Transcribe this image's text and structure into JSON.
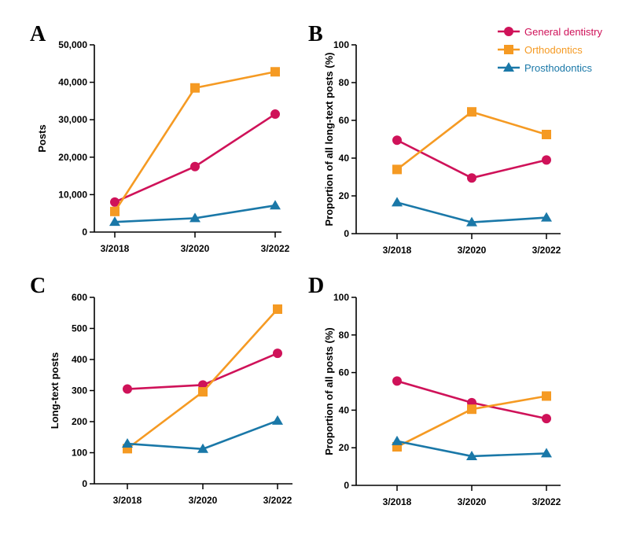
{
  "colors": {
    "general": "#cf1259",
    "ortho": "#f59a23",
    "prostho": "#1a78a8",
    "axis": "#000000"
  },
  "legend": [
    {
      "key": "general",
      "label": "General dentistry",
      "marker": "circle"
    },
    {
      "key": "ortho",
      "label": "Orthodontics",
      "marker": "square"
    },
    {
      "key": "prostho",
      "label": "Prosthodontics",
      "marker": "triangle"
    }
  ],
  "chart_data": [
    {
      "type": "line",
      "panel": "A",
      "categories": [
        "3/2018",
        "3/2020",
        "3/2022"
      ],
      "ylabel": "Posts",
      "xlabel": "",
      "ylim": [
        0,
        50000
      ],
      "yticks": [
        "0",
        "10,000",
        "20,000",
        "30,000",
        "40,000",
        "50,000"
      ],
      "series": [
        {
          "name": "General dentistry",
          "key": "general",
          "values": [
            8000,
            17500,
            31500
          ]
        },
        {
          "name": "Orthodontics",
          "key": "ortho",
          "values": [
            5500,
            38500,
            42800
          ]
        },
        {
          "name": "Prosthodontics",
          "key": "prostho",
          "values": [
            2700,
            3700,
            7100
          ]
        }
      ]
    },
    {
      "type": "line",
      "panel": "B",
      "categories": [
        "3/2018",
        "3/2020",
        "3/2022"
      ],
      "ylabel": "Proportion of all long-text posts (%)",
      "xlabel": "",
      "ylim": [
        0,
        100
      ],
      "yticks": [
        "0",
        "20",
        "40",
        "60",
        "80",
        "100"
      ],
      "series": [
        {
          "name": "General dentistry",
          "key": "general",
          "values": [
            49.5,
            29.5,
            39
          ]
        },
        {
          "name": "Orthodontics",
          "key": "ortho",
          "values": [
            34,
            64.5,
            52.5
          ]
        },
        {
          "name": "Prosthodontics",
          "key": "prostho",
          "values": [
            16.5,
            6,
            8.5
          ]
        }
      ]
    },
    {
      "type": "line",
      "panel": "C",
      "categories": [
        "3/2018",
        "3/2020",
        "3/2022"
      ],
      "ylabel": "Long-text posts",
      "xlabel": "",
      "ylim": [
        0,
        600
      ],
      "yticks": [
        "0",
        "100",
        "200",
        "300",
        "400",
        "500",
        "600"
      ],
      "series": [
        {
          "name": "General dentistry",
          "key": "general",
          "values": [
            305,
            318,
            420
          ]
        },
        {
          "name": "Orthodontics",
          "key": "ortho",
          "values": [
            113,
            296,
            562
          ]
        },
        {
          "name": "Prosthodontics",
          "key": "prostho",
          "values": [
            129,
            112,
            203
          ]
        }
      ]
    },
    {
      "type": "line",
      "panel": "D",
      "categories": [
        "3/2018",
        "3/2020",
        "3/2022"
      ],
      "ylabel": "Proportion of all posts (%)",
      "xlabel": "",
      "ylim": [
        0,
        100
      ],
      "yticks": [
        "0",
        "20",
        "40",
        "60",
        "80",
        "100"
      ],
      "series": [
        {
          "name": "General dentistry",
          "key": "general",
          "values": [
            55.5,
            44,
            35.5
          ]
        },
        {
          "name": "Orthodontics",
          "key": "ortho",
          "values": [
            20.5,
            40.5,
            47.5
          ]
        },
        {
          "name": "Prosthodontics",
          "key": "prostho",
          "values": [
            23.5,
            15.5,
            17
          ]
        }
      ]
    }
  ]
}
